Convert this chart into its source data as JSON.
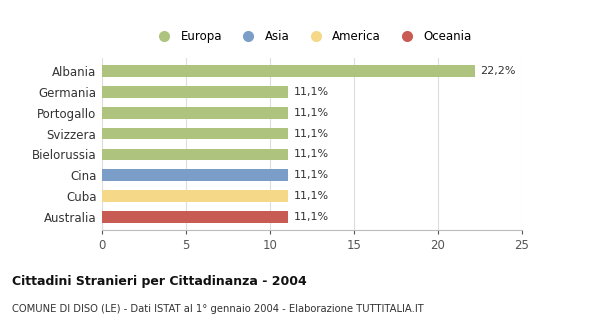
{
  "countries": [
    "Albania",
    "Germania",
    "Portogallo",
    "Svizzera",
    "Bielorussia",
    "Cina",
    "Cuba",
    "Australia"
  ],
  "values": [
    22.2,
    11.1,
    11.1,
    11.1,
    11.1,
    11.1,
    11.1,
    11.1
  ],
  "labels": [
    "22,2%",
    "11,1%",
    "11,1%",
    "11,1%",
    "11,1%",
    "11,1%",
    "11,1%",
    "11,1%"
  ],
  "colors": [
    "#aec47e",
    "#aec47e",
    "#aec47e",
    "#aec47e",
    "#aec47e",
    "#7a9ec8",
    "#f5d888",
    "#c95b55"
  ],
  "legend": [
    {
      "label": "Europa",
      "color": "#aec47e"
    },
    {
      "label": "Asia",
      "color": "#7a9ec8"
    },
    {
      "label": "America",
      "color": "#f5d888"
    },
    {
      "label": "Oceania",
      "color": "#c95b55"
    }
  ],
  "xlim": [
    0,
    25
  ],
  "xticks": [
    0,
    5,
    10,
    15,
    20,
    25
  ],
  "title_bold": "Cittadini Stranieri per Cittadinanza - 2004",
  "subtitle": "COMUNE DI DISO (LE) - Dati ISTAT al 1° gennaio 2004 - Elaborazione TUTTITALIA.IT",
  "background_color": "#ffffff",
  "bar_height": 0.55
}
